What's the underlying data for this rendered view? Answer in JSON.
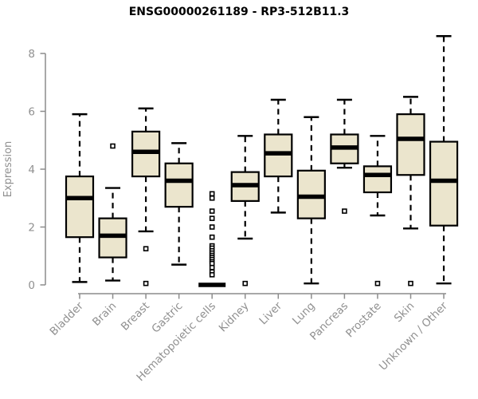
{
  "chart_data": {
    "type": "boxplot",
    "title": "ENSG00000261189 - RP3-512B11.3",
    "ylabel": "Expression",
    "xlabel": "",
    "ylim": [
      0,
      8.8
    ],
    "yticks": [
      0,
      2,
      4,
      6,
      8
    ],
    "grid": false,
    "legend": null,
    "categories": [
      "Bladder",
      "Brain",
      "Breast",
      "Gastric",
      "Hematopoietic cells",
      "Kidney",
      "Liver",
      "Lung",
      "Pancreas",
      "Prostate",
      "Skin",
      "Unknown / Other"
    ],
    "series": [
      {
        "name": "Bladder",
        "low": 0.1,
        "q1": 1.65,
        "median": 3.0,
        "q3": 3.75,
        "high": 5.9,
        "outliers": []
      },
      {
        "name": "Brain",
        "low": 0.15,
        "q1": 0.95,
        "median": 1.7,
        "q3": 2.3,
        "high": 3.35,
        "outliers": [
          4.8
        ]
      },
      {
        "name": "Breast",
        "low": 1.85,
        "q1": 3.75,
        "median": 4.6,
        "q3": 5.3,
        "high": 6.1,
        "outliers": [
          1.25,
          0.05
        ]
      },
      {
        "name": "Gastric",
        "low": 0.7,
        "q1": 2.7,
        "median": 3.6,
        "q3": 4.2,
        "high": 4.9,
        "outliers": []
      },
      {
        "name": "Hematopoietic cells",
        "low": 0.0,
        "q1": 0.0,
        "median": 0.0,
        "q3": 0.0,
        "high": 0.0,
        "outliers": [
          3.15,
          3.0,
          2.55,
          2.3,
          2.0,
          1.65,
          1.35,
          1.27,
          1.18,
          1.1,
          1.02,
          0.95,
          0.88,
          0.8,
          0.74,
          0.6,
          0.45,
          0.35
        ]
      },
      {
        "name": "Kidney",
        "low": 1.6,
        "q1": 2.9,
        "median": 3.45,
        "q3": 3.9,
        "high": 5.15,
        "outliers": [
          0.05
        ]
      },
      {
        "name": "Liver",
        "low": 2.5,
        "q1": 3.75,
        "median": 4.55,
        "q3": 5.2,
        "high": 6.4,
        "outliers": []
      },
      {
        "name": "Lung",
        "low": 0.05,
        "q1": 2.3,
        "median": 3.05,
        "q3": 3.95,
        "high": 5.8,
        "outliers": []
      },
      {
        "name": "Pancreas",
        "low": 4.05,
        "q1": 4.2,
        "median": 4.75,
        "q3": 5.2,
        "high": 6.4,
        "outliers": [
          2.55
        ]
      },
      {
        "name": "Prostate",
        "low": 2.4,
        "q1": 3.2,
        "median": 3.8,
        "q3": 4.1,
        "high": 5.15,
        "outliers": [
          0.05
        ]
      },
      {
        "name": "Skin",
        "low": 1.95,
        "q1": 3.8,
        "median": 5.05,
        "q3": 5.9,
        "high": 6.5,
        "outliers": [
          0.05
        ]
      },
      {
        "name": "Unknown / Other",
        "low": 0.05,
        "q1": 2.05,
        "median": 3.6,
        "q3": 4.95,
        "high": 8.6,
        "outliers": []
      }
    ],
    "colors": {
      "box_fill": "#EBE5CD",
      "box_stroke": "#000000",
      "median": "#000000",
      "axis": "#8C8C8C",
      "tick_label": "#909090",
      "title": "#000000",
      "background": "#FFFFFF"
    }
  }
}
